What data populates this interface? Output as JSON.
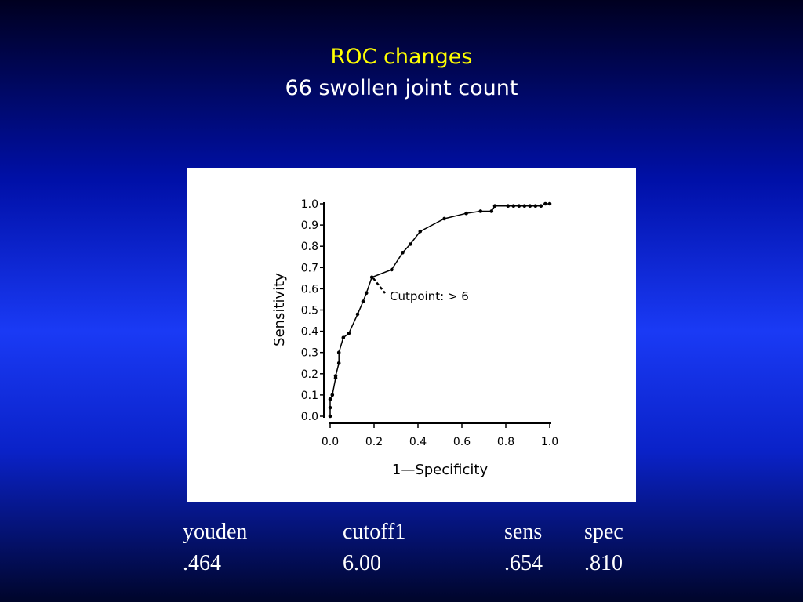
{
  "header": {
    "title": "ROC changes",
    "subtitle": "66 swollen joint count"
  },
  "chart_data": {
    "type": "line",
    "xlabel": "1—Specificity",
    "ylabel": "Sensitivity",
    "annotation": "Cutpoint:  >  6",
    "x": [
      0,
      0,
      0,
      0.01,
      0.025,
      0.025,
      0.04,
      0.04,
      0.06,
      0.085,
      0.125,
      0.15,
      0.165,
      0.19,
      0.28,
      0.33,
      0.365,
      0.41,
      0.52,
      0.62,
      0.685,
      0.735,
      0.75,
      0.81,
      0.835,
      0.86,
      0.885,
      0.91,
      0.935,
      0.96,
      0.98,
      1.0
    ],
    "values": [
      0,
      0.04,
      0.08,
      0.1,
      0.18,
      0.19,
      0.25,
      0.3,
      0.37,
      0.39,
      0.48,
      0.54,
      0.58,
      0.654,
      0.69,
      0.77,
      0.81,
      0.87,
      0.93,
      0.955,
      0.965,
      0.965,
      0.99,
      0.99,
      0.99,
      0.99,
      0.99,
      0.99,
      0.99,
      0.99,
      1.0,
      1.0
    ],
    "color": "#000000",
    "xlim": [
      0,
      1
    ],
    "ylim": [
      0,
      1
    ],
    "xticks": [
      {
        "value": 0,
        "label": "0.0"
      },
      {
        "value": 0.2,
        "label": "0.2"
      },
      {
        "value": 0.4,
        "label": "0.4"
      },
      {
        "value": 0.6,
        "label": "0.6"
      },
      {
        "value": 0.8,
        "label": "0.8"
      },
      {
        "value": 1,
        "label": "1.0"
      }
    ],
    "yticks": [
      {
        "value": 0,
        "label": "0.0"
      },
      {
        "value": 0.1,
        "label": "0.1"
      },
      {
        "value": 0.2,
        "label": "0.2"
      },
      {
        "value": 0.3,
        "label": "0.3"
      },
      {
        "value": 0.4,
        "label": "0.4"
      },
      {
        "value": 0.5,
        "label": "0.5"
      },
      {
        "value": 0.6,
        "label": "0.6"
      },
      {
        "value": 0.7,
        "label": "0.7"
      },
      {
        "value": 0.8,
        "label": "0.8"
      },
      {
        "value": 0.9,
        "label": "0.9"
      },
      {
        "value": 1,
        "label": "1.0"
      }
    ],
    "grid": false
  },
  "table": {
    "header": [
      "youden",
      "cutoff1",
      "sens",
      "spec"
    ],
    "rows": [
      [
        ".464",
        "6.00",
        ".654",
        ".810"
      ]
    ]
  }
}
